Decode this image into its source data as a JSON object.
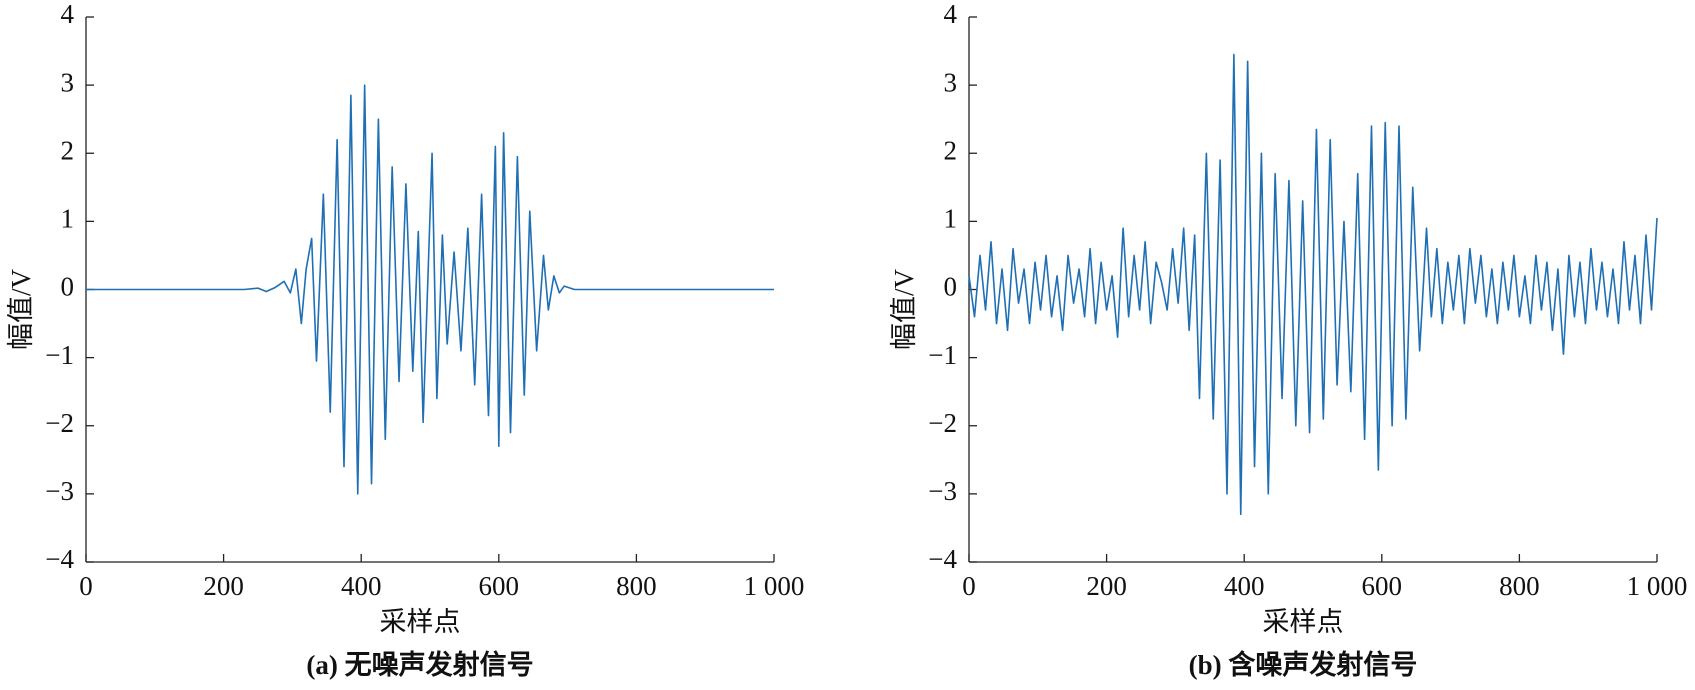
{
  "chart_data": [
    {
      "type": "line",
      "caption": "(a) 无噪声发射信号",
      "xlabel": "采样点",
      "ylabel": "幅值/V",
      "color": "#1f6fb5",
      "xlim": [
        0,
        1000
      ],
      "ylim": [
        -4,
        4
      ],
      "xticks": [
        0,
        200,
        400,
        600,
        800,
        {
          "value": 1000,
          "label": "1 000"
        }
      ],
      "yticks": [
        {
          "value": -4,
          "label": "−4"
        },
        {
          "value": -3,
          "label": "−3"
        },
        {
          "value": -2,
          "label": "−2"
        },
        {
          "value": -1,
          "label": "−1"
        },
        0,
        1,
        2,
        3,
        4
      ],
      "x": [
        0,
        230,
        250,
        262,
        275,
        288,
        297,
        305,
        313,
        320,
        328,
        335,
        345,
        355,
        365,
        375,
        385,
        395,
        405,
        415,
        425,
        435,
        445,
        455,
        465,
        475,
        483,
        490,
        503,
        510,
        518,
        525,
        535,
        545,
        555,
        565,
        575,
        585,
        595,
        600,
        607,
        617,
        627,
        637,
        645,
        655,
        665,
        672,
        680,
        688,
        695,
        710,
        1000
      ],
      "values": [
        0,
        0,
        0.02,
        -0.03,
        0.03,
        0.12,
        -0.05,
        0.3,
        -0.5,
        0.3,
        0.75,
        -1.05,
        1.4,
        -1.8,
        2.2,
        -2.6,
        2.85,
        -3.0,
        3.0,
        -2.85,
        2.5,
        -2.2,
        1.8,
        -1.35,
        1.55,
        -1.2,
        0.85,
        -1.95,
        2.0,
        -1.6,
        0.8,
        -0.8,
        0.55,
        -0.9,
        0.9,
        -1.4,
        1.4,
        -1.85,
        2.1,
        -2.3,
        2.3,
        -2.1,
        1.95,
        -1.55,
        1.15,
        -0.9,
        0.5,
        -0.3,
        0.2,
        -0.05,
        0.05,
        0,
        0
      ]
    },
    {
      "type": "line",
      "caption": "(b) 含噪声发射信号",
      "xlabel": "采样点",
      "ylabel": "幅值/V",
      "color": "#1f6fb5",
      "xlim": [
        0,
        1000
      ],
      "ylim": [
        -4,
        4
      ],
      "xticks": [
        0,
        200,
        400,
        600,
        800,
        {
          "value": 1000,
          "label": "1 000"
        }
      ],
      "yticks": [
        {
          "value": -4,
          "label": "−4"
        },
        {
          "value": -3,
          "label": "−3"
        },
        {
          "value": -2,
          "label": "−2"
        },
        {
          "value": -1,
          "label": "−1"
        },
        0,
        1,
        2,
        3,
        4
      ],
      "x": [
        0,
        8,
        16,
        24,
        32,
        40,
        48,
        56,
        64,
        72,
        80,
        88,
        96,
        104,
        112,
        120,
        128,
        136,
        144,
        152,
        160,
        168,
        176,
        184,
        192,
        200,
        208,
        216,
        224,
        232,
        240,
        248,
        256,
        264,
        272,
        280,
        288,
        296,
        304,
        312,
        320,
        328,
        335,
        345,
        355,
        365,
        375,
        385,
        395,
        405,
        415,
        425,
        435,
        445,
        455,
        465,
        475,
        485,
        495,
        505,
        515,
        525,
        535,
        545,
        555,
        565,
        575,
        585,
        595,
        605,
        615,
        625,
        635,
        645,
        655,
        665,
        672,
        680,
        688,
        696,
        704,
        712,
        720,
        728,
        736,
        744,
        752,
        760,
        768,
        776,
        784,
        792,
        800,
        808,
        816,
        824,
        832,
        840,
        848,
        856,
        864,
        872,
        880,
        888,
        896,
        904,
        912,
        920,
        928,
        936,
        944,
        952,
        960,
        968,
        976,
        984,
        992,
        1000
      ],
      "values": [
        0.2,
        -0.4,
        0.5,
        -0.3,
        0.7,
        -0.5,
        0.3,
        -0.6,
        0.6,
        -0.2,
        0.3,
        -0.5,
        0.4,
        -0.3,
        0.5,
        -0.4,
        0.2,
        -0.6,
        0.5,
        -0.2,
        0.3,
        -0.4,
        0.6,
        -0.5,
        0.4,
        -0.3,
        0.2,
        -0.7,
        0.9,
        -0.4,
        0.5,
        -0.3,
        0.7,
        -0.5,
        0.4,
        0.1,
        -0.3,
        0.6,
        -0.2,
        0.9,
        -0.6,
        0.8,
        -1.6,
        2.0,
        -1.9,
        1.9,
        -3.0,
        3.45,
        -3.3,
        3.35,
        -2.6,
        2.0,
        -3.0,
        1.7,
        -1.6,
        1.6,
        -2.0,
        1.3,
        -2.1,
        2.35,
        -1.9,
        2.2,
        -1.4,
        1.0,
        -1.5,
        1.7,
        -2.2,
        2.4,
        -2.65,
        2.45,
        -2.0,
        2.4,
        -1.9,
        1.5,
        -0.9,
        0.9,
        -0.4,
        0.6,
        -0.5,
        0.4,
        -0.3,
        0.5,
        -0.5,
        0.6,
        -0.2,
        0.5,
        -0.4,
        0.3,
        -0.5,
        0.4,
        -0.3,
        0.5,
        -0.4,
        0.2,
        -0.5,
        0.5,
        -0.3,
        0.4,
        -0.6,
        0.3,
        -0.95,
        0.5,
        -0.4,
        0.4,
        -0.5,
        0.6,
        -0.3,
        0.4,
        -0.4,
        0.3,
        -0.5,
        0.7,
        -0.3,
        0.5,
        -0.5,
        0.8,
        -0.3,
        1.05
      ]
    }
  ]
}
